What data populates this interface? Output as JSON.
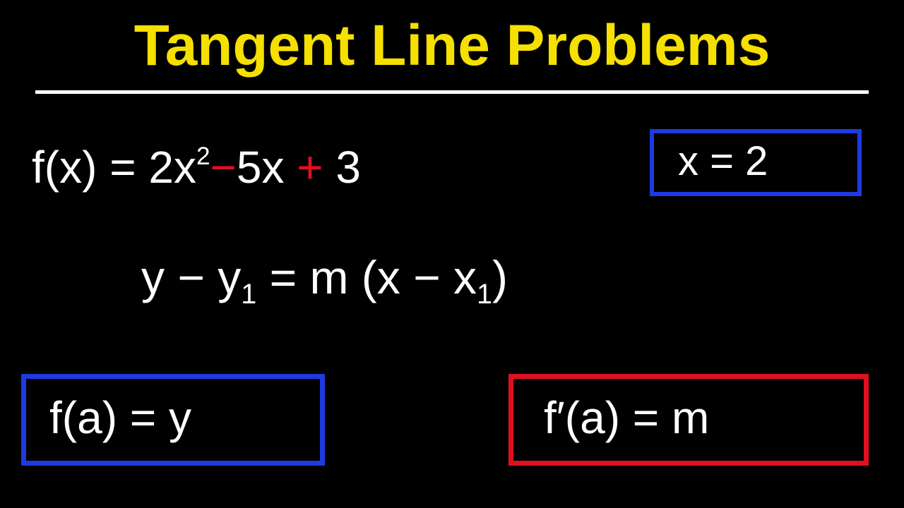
{
  "title": "Tangent Line Problems",
  "title_color": "#f5e000",
  "eq_function": {
    "prefix": "f(x) = 2x",
    "exponent": "2",
    "minus": "−",
    "middle": "5x",
    "plus": "+",
    "suffix": "3"
  },
  "eq_xvalue": "x = 2",
  "eq_pointslope": {
    "p1": "y − y",
    "sub1": "1",
    "p2": " = m (x − x",
    "sub2": "1",
    "p3": ")"
  },
  "eq_fa_y": "f(a) = y",
  "eq_fpa_m": "f′(a) = m",
  "colors": {
    "white": "#ffffff",
    "red_op": "#e01020",
    "blue_box": "#1e3ae0",
    "title_yellow": "#f5e000",
    "background": "#000000"
  }
}
